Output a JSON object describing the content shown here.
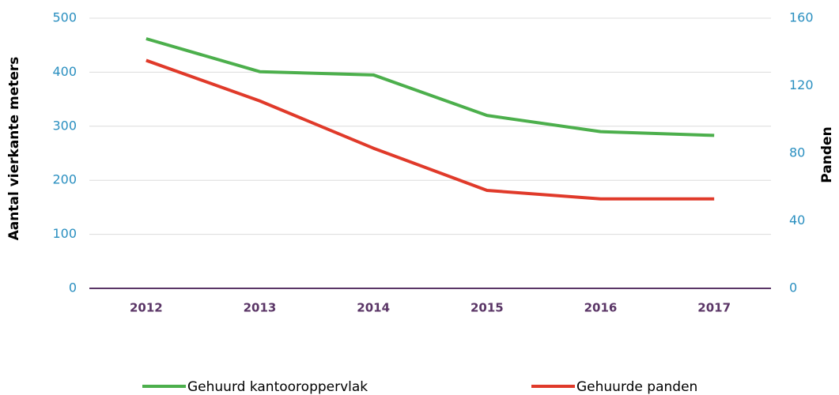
{
  "chart_data": {
    "type": "line",
    "categories": [
      "2012",
      "2013",
      "2014",
      "2015",
      "2016",
      "2017"
    ],
    "series": [
      {
        "name": "Gehuurd kantooroppervlak",
        "color": "#4caf4c",
        "values": [
          462,
          401,
          395,
          320,
          290,
          283
        ]
      },
      {
        "name": "Gehuurde panden",
        "color": "#e03a2a",
        "axis": "y2",
        "values": [
          135,
          111,
          83,
          58,
          53,
          53
        ]
      }
    ],
    "y_label": "Aantal vierkante meters",
    "y2_label": "Panden",
    "ylim": [
      0,
      500
    ],
    "yticks": [
      0,
      100,
      200,
      300,
      400,
      500
    ],
    "y2lim": [
      0,
      160
    ],
    "y2ticks": [
      0,
      40,
      80,
      120,
      160
    ],
    "grid": true,
    "legend": "bottom"
  }
}
